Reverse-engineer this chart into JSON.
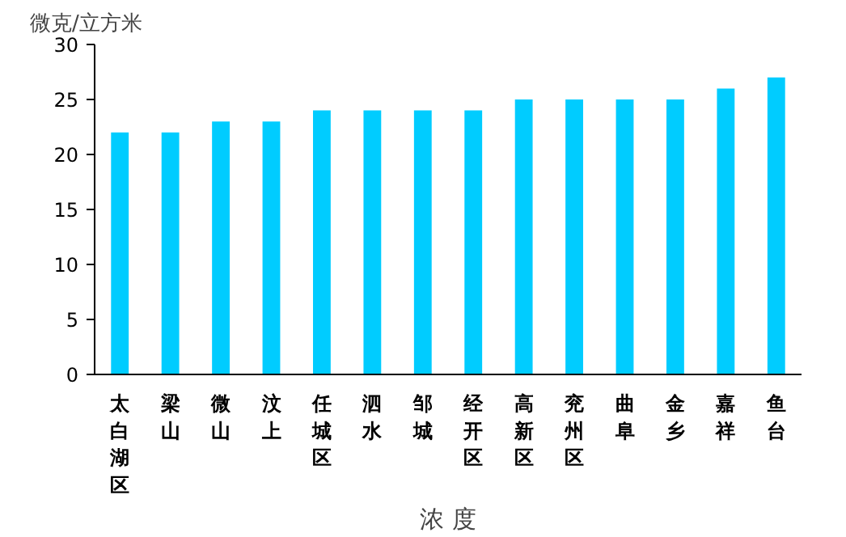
{
  "chart_data": {
    "type": "bar",
    "ylabel": "微克/立方米",
    "xlabel": "浓 度",
    "categories": [
      "太白湖区",
      "梁山",
      "微山",
      "汶上",
      "任城区",
      "泗水",
      "邹城",
      "经开区",
      "高新区",
      "兖州区",
      "曲阜",
      "金乡",
      "嘉祥",
      "鱼台"
    ],
    "values": [
      22,
      22,
      23,
      23,
      24,
      24,
      24,
      24,
      25,
      25,
      25,
      25,
      26,
      27
    ],
    "color": "#00ccff",
    "ylim": [
      0,
      30
    ],
    "yticks": [
      0,
      5,
      10,
      15,
      20,
      25,
      30
    ],
    "grid": false
  }
}
